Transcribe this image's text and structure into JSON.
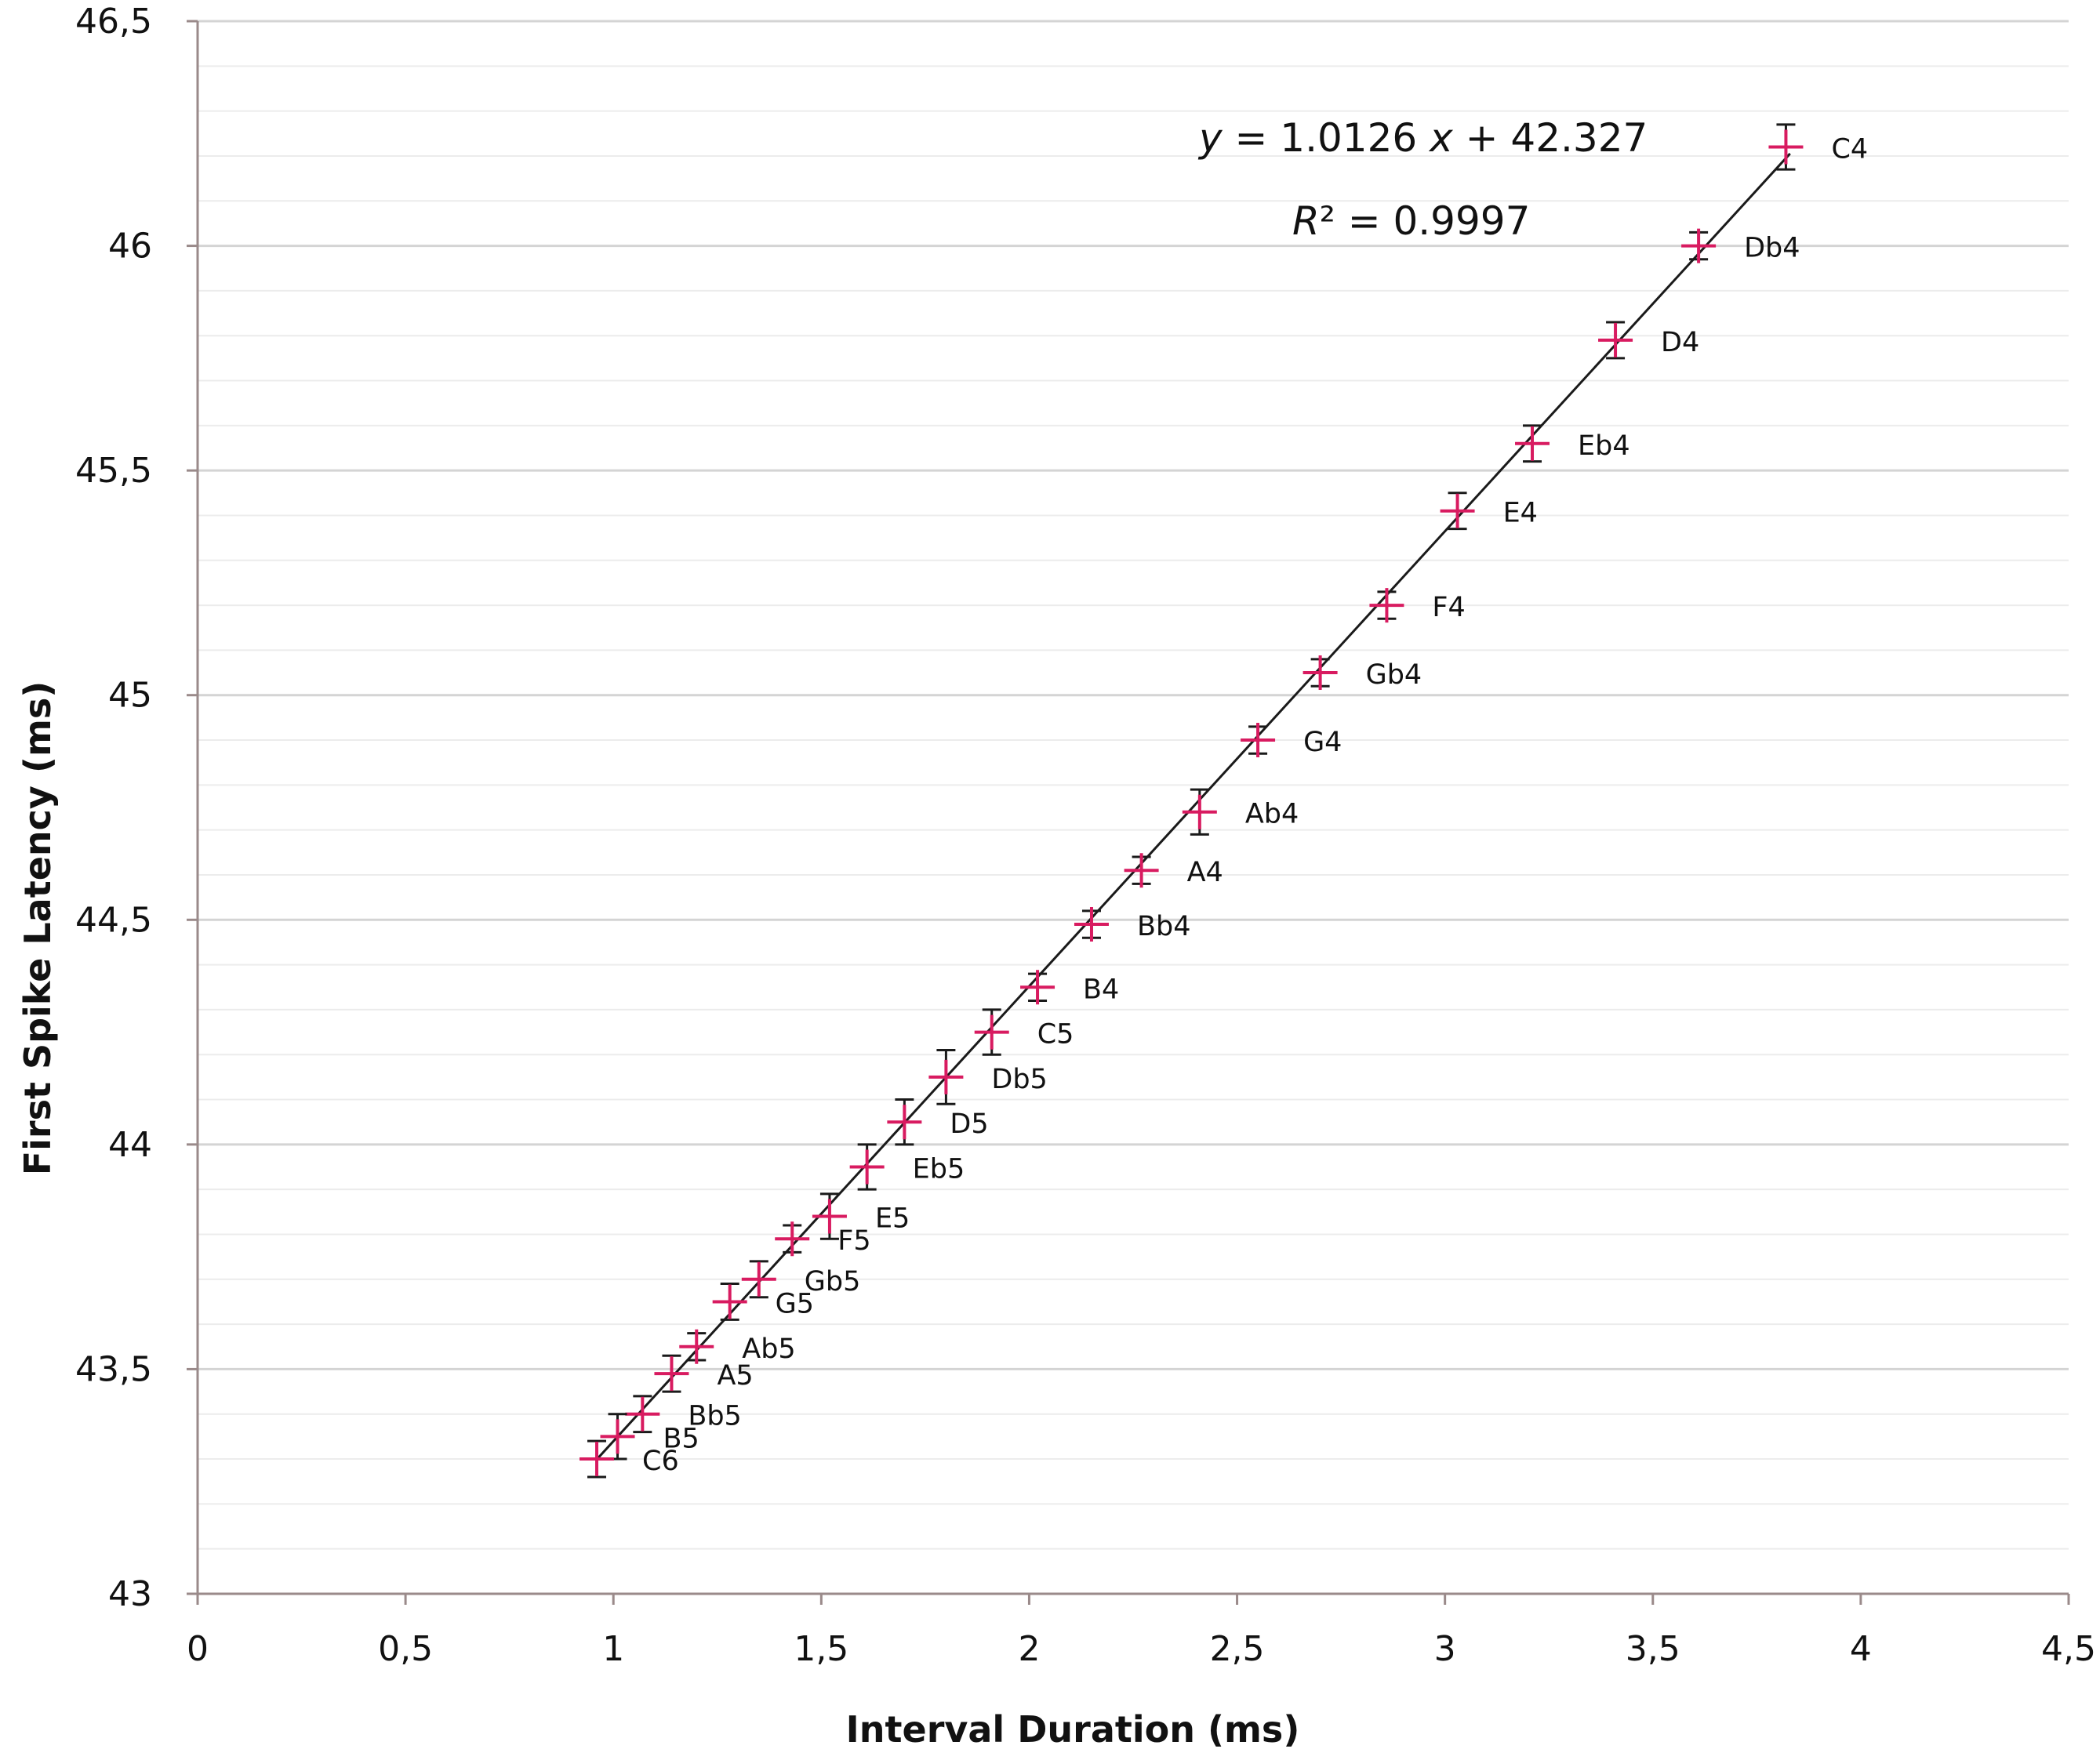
{
  "chart_data": {
    "type": "scatter",
    "title": "",
    "xlabel": "Interval Duration (ms)",
    "ylabel": "First Spike Latency (ms)",
    "xlim": [
      0,
      4.5
    ],
    "ylim": [
      43,
      46.5
    ],
    "x_ticks": [
      "0",
      "0,5",
      "1",
      "1,5",
      "2",
      "2,5",
      "3",
      "3,5",
      "4",
      "4,5"
    ],
    "x_tick_values": [
      0,
      0.5,
      1,
      1.5,
      2,
      2.5,
      3,
      3.5,
      4,
      4.5
    ],
    "y_ticks": [
      "43",
      "43,5",
      "44",
      "44,5",
      "45",
      "45,5",
      "46",
      "46,5"
    ],
    "y_tick_values": [
      43,
      43.5,
      44,
      44.5,
      45,
      45.5,
      46,
      46.5
    ],
    "grid": "horizontal major and minor",
    "marker_color": "#d81b60",
    "line_color": "#1a1a1a",
    "axis_color": "#9a8a8a",
    "points": [
      {
        "label": "C4",
        "x": 3.82,
        "y": 46.22,
        "err": 0.05
      },
      {
        "label": "Db4",
        "x": 3.61,
        "y": 46.0,
        "err": 0.03
      },
      {
        "label": "D4",
        "x": 3.41,
        "y": 45.79,
        "err": 0.04
      },
      {
        "label": "Eb4",
        "x": 3.21,
        "y": 45.56,
        "err": 0.04
      },
      {
        "label": "E4",
        "x": 3.03,
        "y": 45.41,
        "err": 0.04
      },
      {
        "label": "F4",
        "x": 2.86,
        "y": 45.2,
        "err": 0.03
      },
      {
        "label": "Gb4",
        "x": 2.7,
        "y": 45.05,
        "err": 0.03
      },
      {
        "label": "G4",
        "x": 2.55,
        "y": 44.9,
        "err": 0.03
      },
      {
        "label": "Ab4",
        "x": 2.41,
        "y": 44.74,
        "err": 0.05
      },
      {
        "label": "A4",
        "x": 2.27,
        "y": 44.61,
        "err": 0.03
      },
      {
        "label": "Bb4",
        "x": 2.15,
        "y": 44.49,
        "err": 0.03
      },
      {
        "label": "B4",
        "x": 2.02,
        "y": 44.35,
        "err": 0.03
      },
      {
        "label": "C5",
        "x": 1.91,
        "y": 44.25,
        "err": 0.05
      },
      {
        "label": "Db5",
        "x": 1.8,
        "y": 44.15,
        "err": 0.06
      },
      {
        "label": "D5",
        "x": 1.7,
        "y": 44.05,
        "err": 0.05
      },
      {
        "label": "Eb5",
        "x": 1.61,
        "y": 43.95,
        "err": 0.05
      },
      {
        "label": "E5",
        "x": 1.52,
        "y": 43.84,
        "err": 0.05
      },
      {
        "label": "F5",
        "x": 1.43,
        "y": 43.79,
        "err": 0.03
      },
      {
        "label": "Gb5",
        "x": 1.35,
        "y": 43.7,
        "err": 0.04
      },
      {
        "label": "G5",
        "x": 1.28,
        "y": 43.65,
        "err": 0.04
      },
      {
        "label": "Ab5",
        "x": 1.2,
        "y": 43.55,
        "err": 0.03
      },
      {
        "label": "A5",
        "x": 1.14,
        "y": 43.49,
        "err": 0.04
      },
      {
        "label": "Bb5",
        "x": 1.07,
        "y": 43.4,
        "err": 0.04
      },
      {
        "label": "B5",
        "x": 1.01,
        "y": 43.35,
        "err": 0.05
      },
      {
        "label": "C6",
        "x": 0.96,
        "y": 43.3,
        "err": 0.04
      }
    ],
    "trendline": {
      "slope": 1.0126,
      "intercept": 42.327,
      "x_range": [
        0.96,
        3.83
      ]
    },
    "annotations": {
      "equation_prefix": "y",
      "equation_mid": " = 1.0126 ",
      "equation_x": "x",
      "equation_suffix": " + 42.327",
      "r2_prefix": "R",
      "r2_suffix": "² = 0.9997"
    }
  }
}
